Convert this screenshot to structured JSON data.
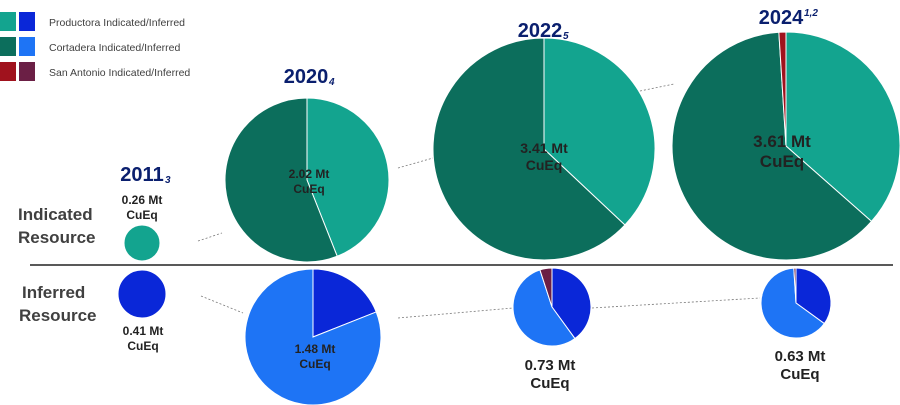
{
  "legend": [
    {
      "label": "Productora Indicated/Inferred",
      "colors": [
        "#13a48f",
        "#0a27d8"
      ]
    },
    {
      "label": "Cortadera Indicated/Inferred",
      "colors": [
        "#0c6e5c",
        "#1e74f5"
      ]
    },
    {
      "label": "San Antonio Indicated/Inferred",
      "colors": [
        "#a0121d",
        "#6b1f45"
      ]
    }
  ],
  "row_labels": {
    "indicated": [
      "Indicated",
      "Resource"
    ],
    "inferred": [
      "Inferred",
      "Resource"
    ]
  },
  "chart_data": {
    "type": "pie",
    "title": "",
    "deposits": [
      "Productora",
      "Cortadera",
      "San Antonio"
    ],
    "colors": {
      "indicated": {
        "Productora": "#13a48f",
        "Cortadera": "#0c6e5c",
        "San Antonio": "#a0121d"
      },
      "inferred": {
        "Productora": "#0a27d8",
        "Cortadera": "#1e74f5",
        "San Antonio": "#6b1f45"
      }
    },
    "years": [
      {
        "year": "2011",
        "note": "3",
        "indicated": {
          "total": "0.26 Mt",
          "unit": "CuEq",
          "shares": {
            "Productora": 1.0,
            "Cortadera": 0.0,
            "San Antonio": 0.0
          }
        },
        "inferred": {
          "total": "0.41 Mt",
          "unit": "CuEq",
          "shares": {
            "Productora": 1.0,
            "Cortadera": 0.0,
            "San Antonio": 0.0
          }
        }
      },
      {
        "year": "2020",
        "note": "4",
        "indicated": {
          "total": "2.02 Mt",
          "unit": "CuEq",
          "shares": {
            "Productora": 0.44,
            "Cortadera": 0.56,
            "San Antonio": 0.0
          }
        },
        "inferred": {
          "total": "1.48 Mt",
          "unit": "CuEq",
          "shares": {
            "Productora": 0.19,
            "Cortadera": 0.81,
            "San Antonio": 0.0
          }
        }
      },
      {
        "year": "2022",
        "note": "5",
        "indicated": {
          "total": "3.41 Mt",
          "unit": "CuEq",
          "shares": {
            "Productora": 0.37,
            "Cortadera": 0.63,
            "San Antonio": 0.0
          }
        },
        "inferred": {
          "total": "0.73 Mt",
          "unit": "CuEq",
          "shares": {
            "Productora": 0.4,
            "Cortadera": 0.55,
            "San Antonio": 0.05
          }
        }
      },
      {
        "year": "2024",
        "note": "1,2",
        "indicated": {
          "total": "3.61 Mt",
          "unit": "CuEq",
          "shares": {
            "Productora": 0.365,
            "Cortadera": 0.625,
            "San Antonio": 0.01
          }
        },
        "inferred": {
          "total": "0.63 Mt",
          "unit": "CuEq",
          "shares": {
            "Productora": 0.35,
            "Cortadera": 0.64,
            "San Antonio": 0.01
          }
        }
      }
    ]
  }
}
